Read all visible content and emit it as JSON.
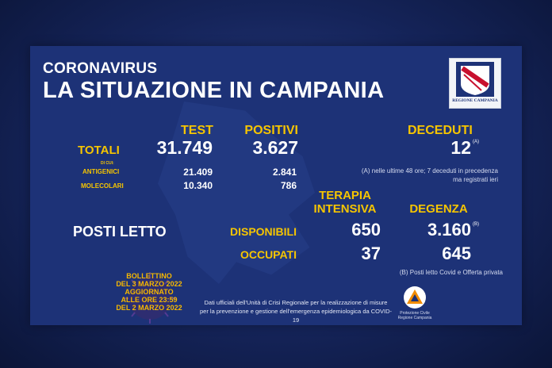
{
  "header": {
    "subtitle": "CORONAVIRUS",
    "title": "LA SITUAZIONE IN CAMPANIA",
    "logo_text": "REGIONE CAMPANIA"
  },
  "columns": {
    "test": "TEST",
    "positivi": "POSITIVI",
    "deceduti": "DECEDUTI"
  },
  "totali": {
    "label": "TOTALI",
    "di_cui": "DI CUI:",
    "test": "31.749",
    "positivi": "3.627",
    "deceduti": "12",
    "deceduti_sup": "(A)"
  },
  "antigenici": {
    "label": "ANTIGENICI",
    "test": "21.409",
    "positivi": "2.841"
  },
  "molecolari": {
    "label": "MOLECOLARI",
    "test": "10.340",
    "positivi": "786"
  },
  "note_a": {
    "line1": "(A) nelle ultime 48 ore; 7 deceduti in precedenza",
    "line2": "ma registrati ieri"
  },
  "posti_letto": {
    "label": "POSTI LETTO",
    "ti_header_1": "TERAPIA",
    "ti_header_2": "INTENSIVA",
    "degenza_header": "DEGENZA",
    "disponibili_label": "DISPONIBILI",
    "occupati_label": "OCCUPATI",
    "ti_disponibili": "650",
    "ti_occupati": "37",
    "degenza_disponibili": "3.160",
    "degenza_sup": "(B)",
    "degenza_occupati": "645",
    "note_b": "(B) Posti letto Covid e Offerta privata"
  },
  "bulletin": {
    "line1": "BOLLETTINO",
    "line2": "DEL 3 MARZO 2022",
    "line3": "AGGIORNATO",
    "line4": "ALLE ORE 23:59",
    "line5": "DEL 2 MARZO 2022"
  },
  "footer": {
    "line1": "Dati ufficiali dell'Unità di Crisi Regionale per la realizzazione di misure",
    "line2": "per la prevenzione e gestione dell'emergenza epidemiologica da COVID-19"
  },
  "protezione": {
    "line1": "Protezione Civile",
    "line2": "Regione Campania"
  },
  "colors": {
    "background": "#15245a",
    "panel": "#1d3277",
    "accent": "#f6c500",
    "text": "#ffffff"
  }
}
